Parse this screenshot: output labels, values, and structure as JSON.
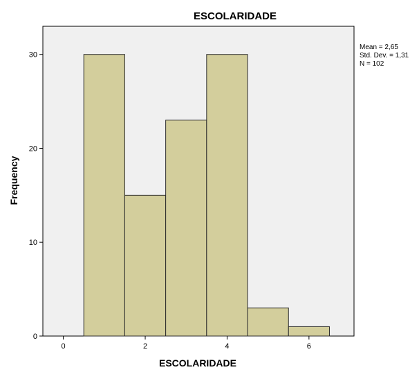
{
  "chart_data": {
    "type": "bar",
    "title": "ESCOLARIDADE",
    "xlabel": "ESCOLARIDADE",
    "ylabel": "Frequency",
    "xlim": [
      -0.5,
      7.1
    ],
    "ylim": [
      0,
      33
    ],
    "xticks": [
      0,
      2,
      4,
      6
    ],
    "yticks": [
      0,
      10,
      20,
      30
    ],
    "bins": [
      {
        "x0": 0.5,
        "x1": 1.5,
        "value": 30
      },
      {
        "x0": 1.5,
        "x1": 2.5,
        "value": 15
      },
      {
        "x0": 2.5,
        "x1": 3.5,
        "value": 23
      },
      {
        "x0": 3.5,
        "x1": 4.5,
        "value": 30
      },
      {
        "x0": 4.5,
        "x1": 5.5,
        "value": 3
      },
      {
        "x0": 5.5,
        "x1": 6.5,
        "value": 1
      }
    ],
    "stats": {
      "mean": "Mean = 2,65",
      "std_dev": "Std. Dev. = 1,31",
      "n": "N = 102"
    },
    "grid": false,
    "colors": {
      "bar_fill": "#d3ce9c",
      "bar_stroke": "#2b2b2b",
      "plot_bg": "#f0f0f0",
      "frame": "#000000"
    }
  }
}
